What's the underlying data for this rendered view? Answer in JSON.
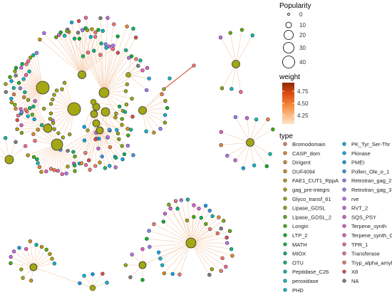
{
  "colors": {
    "edge_light": "#f6d2b7",
    "edge_dark": "#d9623a",
    "hub_fill": "#a3a812",
    "node_stroke": "#333333",
    "weight_low": "#fde4c8",
    "weight_high": "#8b2a05"
  },
  "legend": {
    "popularity": {
      "title": "Popularity",
      "ticks": [
        "0",
        "10",
        "20",
        "30",
        "40"
      ]
    },
    "weight": {
      "title": "weight",
      "ticks": [
        "4.75",
        "4.50",
        "4.25"
      ]
    },
    "type": {
      "title": "type",
      "left": [
        {
          "label": "Bromodomain",
          "color": "#f8766d"
        },
        {
          "label": "CASP_dom",
          "color": "#ef7f3a"
        },
        {
          "label": "Dirigent",
          "color": "#e3892c"
        },
        {
          "label": "DUF4094",
          "color": "#d49317"
        },
        {
          "label": "FAE1_CUT1_RppA",
          "color": "#c39b00"
        },
        {
          "label": "gag_pre-integrs",
          "color": "#b0a300"
        },
        {
          "label": "Glyco_transf_61",
          "color": "#9aa900"
        },
        {
          "label": "Lipase_GDSL",
          "color": "#80af00"
        },
        {
          "label": "Lipase_GDSL_2",
          "color": "#5eb300"
        },
        {
          "label": "Longin",
          "color": "#39b600"
        },
        {
          "label": "LTP_2",
          "color": "#00b81f"
        },
        {
          "label": "MATH",
          "color": "#00ba4f"
        },
        {
          "label": "MIOX",
          "color": "#00bc72"
        },
        {
          "label": "OTU",
          "color": "#00be91"
        },
        {
          "label": "Peptidase_C26",
          "color": "#00c0ad"
        },
        {
          "label": "peroxidase",
          "color": "#00c0c6"
        },
        {
          "label": "PHD",
          "color": "#00bcd8"
        }
      ],
      "right": [
        {
          "label": "PK_Tyr_Ser-Thr",
          "color": "#00b6e6"
        },
        {
          "label": "Pkinase",
          "color": "#00aef0"
        },
        {
          "label": "PMEI",
          "color": "#00a3f7"
        },
        {
          "label": "Pollen_Ole_e_1",
          "color": "#3996ff"
        },
        {
          "label": "Retrotran_gag_2",
          "color": "#8388ff"
        },
        {
          "label": "Retrotran_gag_3",
          "color": "#a37cff"
        },
        {
          "label": "rve",
          "color": "#bb70f6"
        },
        {
          "label": "RVT_2",
          "color": "#cc66ea"
        },
        {
          "label": "SQS_PSY",
          "color": "#dc5edb"
        },
        {
          "label": "Terpene_synth",
          "color": "#e85cc9"
        },
        {
          "label": "Terpene_synth_C",
          "color": "#f25fb4"
        },
        {
          "label": "TPR_1",
          "color": "#f8669c"
        },
        {
          "label": "Transferase",
          "color": "#fb6f84"
        },
        {
          "label": "Tryp_alpha_amyl",
          "color": "#fc7873"
        },
        {
          "label": "X8",
          "color": "#e8474c"
        },
        {
          "label": "NA",
          "color": "#7f7f7f"
        }
      ]
    }
  }
}
